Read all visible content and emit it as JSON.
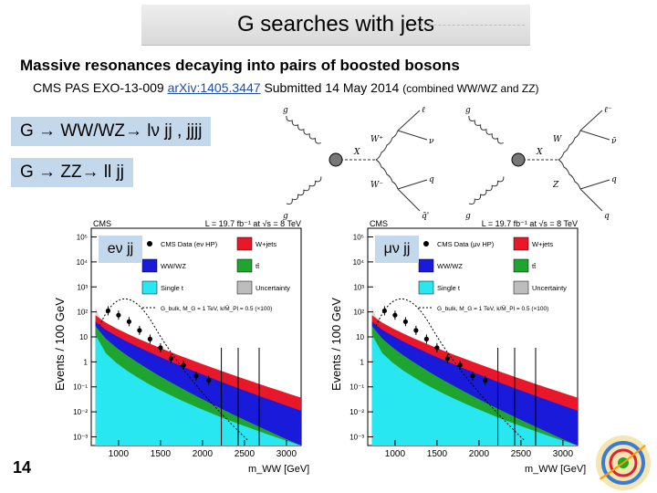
{
  "slide": {
    "title": "G searches with jets",
    "subtitle": "Massive resonances decaying into pairs of boosted bosons",
    "reference": {
      "prefix": "CMS PAS EXO-13-009",
      "link": "arXiv:1405.3447",
      "date": "Submitted 14 May 2014",
      "note": "(combined WW/WZ and ZZ)"
    },
    "channels": [
      "G → WW/WZ→ lν jj , jjjj",
      "G → ZZ→ ll jj"
    ],
    "page_number": "14"
  },
  "plots": [
    {
      "lepton_label": "eν jj",
      "header_left": "CMS",
      "header_right": "L = 19.7 fb⁻¹ at √s = 8 TeV",
      "legend": [
        "CMS Data (eν HP)",
        "W+jets",
        "WW/WZ",
        "tt̄",
        "Single t",
        "Uncertainty",
        "G_bulk, M_G = 1 TeV, k/M̄_Pl = 0.5 (×100)"
      ],
      "ylabel": "Events / 100 GeV",
      "xlabel": "m_WW [GeV]",
      "xticks": [
        "1000",
        "1500",
        "2000",
        "2500",
        "3000"
      ],
      "yticks": [
        "10⁵",
        "10⁴",
        "10³",
        "10²",
        "10",
        "1",
        "10⁻¹",
        "10⁻²",
        "10⁻³"
      ]
    },
    {
      "lepton_label": "μν jj",
      "header_left": "CMS",
      "header_right": "L = 19.7 fb⁻¹ at √s = 8 TeV",
      "legend": [
        "CMS Data (μν HP)",
        "W+jets",
        "WW/WZ",
        "tt̄",
        "Single t",
        "Uncertainty",
        "G_bulk, M_G = 1 TeV, k/M̄_Pl = 0.5 (×100)"
      ],
      "ylabel": "Events / 100 GeV",
      "xlabel": "m_WW [GeV]",
      "xticks": [
        "1000",
        "1500",
        "2000",
        "2500",
        "3000"
      ],
      "yticks": [
        "10⁵",
        "10⁴",
        "10³",
        "10²",
        "10",
        "1",
        "10⁻¹",
        "10⁻²",
        "10⁻³"
      ]
    }
  ],
  "diagrams": [
    {
      "incoming": [
        "g",
        "g"
      ],
      "resonance": "X",
      "bosons": [
        "W⁺",
        "W⁻"
      ],
      "final": [
        "ℓ",
        "ν",
        "q",
        "q̄'"
      ]
    },
    {
      "incoming": [
        "g",
        "g"
      ],
      "resonance": "X",
      "bosons": [
        "W",
        "Z"
      ],
      "final": [
        "ℓ⁻",
        "ν̄",
        "q",
        "q"
      ]
    }
  ],
  "colors": {
    "w_jets": "#e8172a",
    "ww_wz": "#1a1adb",
    "ttbar": "#1fa52f",
    "single_t": "#29e7f0",
    "uncertainty": "#bdbdbd",
    "label_bg": "#c4d8ec"
  }
}
